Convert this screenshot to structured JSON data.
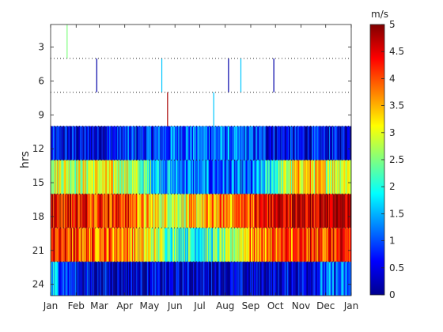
{
  "chart_data": {
    "type": "heatmap",
    "title": "",
    "xlabel": "",
    "ylabel": "hrs",
    "x_ticks": [
      "Jan",
      "Feb",
      "Mar",
      "Apr",
      "May",
      "Jun",
      "Jul",
      "Aug",
      "Sep",
      "Oct",
      "Nov",
      "Dec",
      "Jan"
    ],
    "y_ticks": [
      3,
      6,
      9,
      12,
      15,
      18,
      21,
      24
    ],
    "ylim": [
      1,
      25
    ],
    "ydir": "reverse",
    "colorbar": {
      "label": "m/s",
      "ticks": [
        "0",
        "0.5",
        "1",
        "1.5",
        "2",
        "2.5",
        "3",
        "3.5",
        "4",
        "4.5",
        "5"
      ],
      "range": [
        0,
        5
      ],
      "colormap": "jet"
    },
    "grid": "dotted lines at hour boundaries",
    "bands": [
      {
        "hours": [
          1,
          4
        ],
        "typical_speed_mps": null,
        "sparse_events": [
          {
            "day": 20,
            "speed_mps": 2.5
          }
        ]
      },
      {
        "hours": [
          4,
          7
        ],
        "typical_speed_mps": null,
        "sparse_events": [
          {
            "day": 56,
            "speed_mps": 0.2
          },
          {
            "day": 135,
            "speed_mps": 1.6
          },
          {
            "day": 216,
            "speed_mps": 0.2
          },
          {
            "day": 231,
            "speed_mps": 1.6
          },
          {
            "day": 271,
            "speed_mps": 0.2
          }
        ]
      },
      {
        "hours": [
          7,
          10
        ],
        "typical_speed_mps": null,
        "sparse_events": [
          {
            "day": 142,
            "speed_mps": 4.8
          },
          {
            "day": 198,
            "speed_mps": 1.6
          }
        ]
      },
      {
        "hours": [
          10,
          13
        ],
        "typical_speed_mps": 0.6
      },
      {
        "hours": [
          13,
          16
        ],
        "typical_speed_mps": 2.6
      },
      {
        "hours": [
          16,
          19
        ],
        "typical_speed_mps": 4.3
      },
      {
        "hours": [
          19,
          22
        ],
        "typical_speed_mps": 3.7
      },
      {
        "hours": [
          22,
          25
        ],
        "typical_speed_mps": 0.7
      }
    ],
    "monthly_speed_mps": {
      "months": [
        "Jan",
        "Feb",
        "Mar",
        "Apr",
        "May",
        "Jun",
        "Jul",
        "Aug",
        "Sep",
        "Oct",
        "Nov",
        "Dec"
      ],
      "hrs_10_13": [
        0.5,
        0.5,
        0.5,
        0.7,
        0.8,
        1.1,
        1.2,
        1.1,
        0.9,
        0.6,
        0.5,
        0.5
      ],
      "hrs_13_16": [
        3.1,
        2.9,
        3.0,
        2.9,
        2.0,
        1.3,
        1.1,
        1.0,
        0.9,
        2.2,
        3.4,
        3.1
      ],
      "hrs_16_19": [
        4.5,
        4.4,
        4.3,
        4.2,
        3.2,
        3.0,
        3.3,
        3.7,
        4.1,
        4.6,
        4.7,
        4.8
      ],
      "hrs_19_22": [
        4.2,
        4.0,
        3.9,
        3.8,
        3.0,
        2.3,
        2.0,
        2.4,
        3.6,
        4.0,
        4.0,
        4.1
      ],
      "hrs_22_25": [
        1.6,
        0.6,
        0.4,
        0.3,
        0.3,
        0.3,
        0.3,
        0.3,
        0.3,
        0.3,
        0.5,
        1.0
      ]
    }
  }
}
